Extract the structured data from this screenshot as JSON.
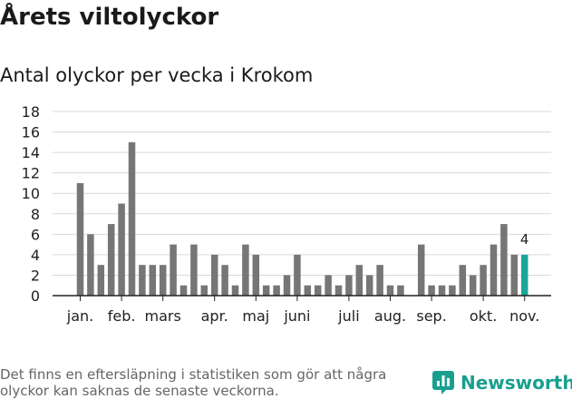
{
  "title": "Årets viltolyckor",
  "subtitle": "Antal olyckor per vecka i Krokom",
  "footnote": "Det finns en eftersläpning i statistiken som gör att några olyckor kan saknas de senaste veckorna.",
  "brand": {
    "name": "Newsworthy",
    "icon": "newsworthy-logo-icon",
    "color": "#199f8f"
  },
  "colors": {
    "bar": "#767676",
    "highlight": "#1aa79a",
    "grid": "#d9d9d9",
    "axis": "#222222"
  },
  "chart_data": {
    "type": "bar",
    "title": "Antal olyckor per vecka i Krokom",
    "xlabel": "",
    "ylabel": "",
    "ylim": [
      0,
      18
    ],
    "yticks": [
      0,
      2,
      4,
      6,
      8,
      10,
      12,
      14,
      16,
      18
    ],
    "grid": true,
    "weeks": [
      1,
      2,
      3,
      4,
      5,
      6,
      7,
      8,
      9,
      10,
      11,
      12,
      13,
      14,
      15,
      16,
      17,
      18,
      19,
      20,
      21,
      22,
      23,
      24,
      25,
      26,
      27,
      28,
      29,
      30,
      31,
      32,
      33,
      34,
      35,
      36,
      37,
      38,
      39,
      40,
      41,
      42,
      43,
      44
    ],
    "values": [
      11,
      6,
      3,
      7,
      9,
      15,
      3,
      3,
      3,
      5,
      1,
      5,
      1,
      4,
      3,
      1,
      5,
      4,
      1,
      1,
      2,
      4,
      1,
      1,
      2,
      1,
      2,
      3,
      2,
      3,
      1,
      1,
      0,
      5,
      1,
      1,
      1,
      3,
      2,
      3,
      5,
      7,
      4,
      4
    ],
    "month_labels": [
      {
        "label": "jan.",
        "week": 1
      },
      {
        "label": "feb.",
        "week": 5
      },
      {
        "label": "mars",
        "week": 9
      },
      {
        "label": "apr.",
        "week": 14
      },
      {
        "label": "maj",
        "week": 18
      },
      {
        "label": "juni",
        "week": 22
      },
      {
        "label": "juli",
        "week": 27
      },
      {
        "label": "aug.",
        "week": 31
      },
      {
        "label": "sep.",
        "week": 35
      },
      {
        "label": "okt.",
        "week": 40
      },
      {
        "label": "nov.",
        "week": 44
      }
    ],
    "highlight_index": 43,
    "annotation": {
      "text": "4",
      "week": 44
    }
  }
}
